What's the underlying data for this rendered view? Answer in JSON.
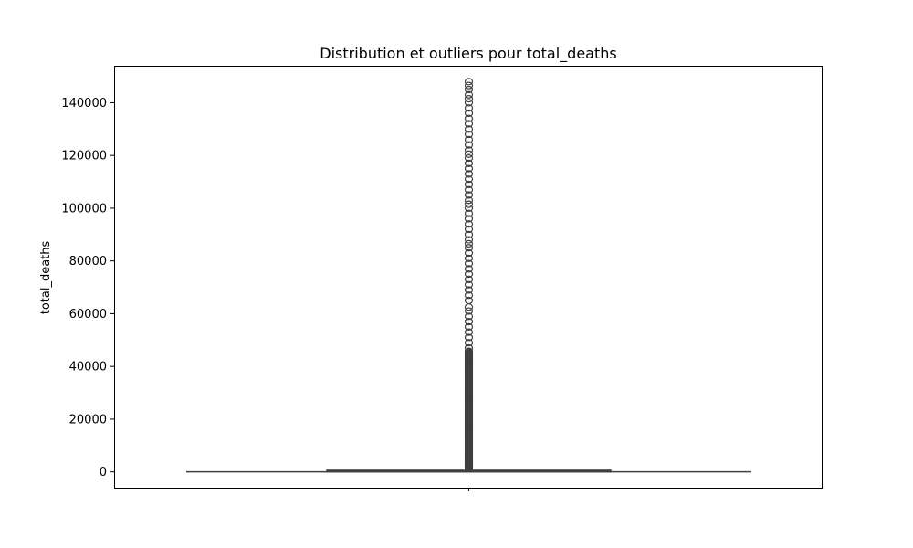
{
  "chart_data": {
    "type": "box",
    "title": "Distribution et outliers pour total_deaths",
    "xlabel": "",
    "ylabel": "total_deaths",
    "ylim": [
      -6000,
      154000
    ],
    "yticks": [
      0,
      20000,
      40000,
      60000,
      80000,
      100000,
      120000,
      140000
    ],
    "grid": false,
    "box": {
      "whisker_low": 0,
      "q1": 20,
      "median": 120,
      "q3": 600,
      "whisker_high": 1500
    },
    "outliers_dense_range": [
      1500,
      46000
    ],
    "outliers_sparse": [
      47000,
      49000,
      51000,
      53000,
      55000,
      57000,
      59000,
      61000,
      62500,
      65000,
      67000,
      69000,
      71000,
      73000,
      75000,
      77000,
      79000,
      81000,
      83000,
      85000,
      86500,
      88000,
      90000,
      92000,
      94000,
      96000,
      98000,
      100000,
      101500,
      103000,
      105000,
      107000,
      109000,
      111000,
      113000,
      115000,
      117000,
      119000,
      120500,
      122000,
      124000,
      126000,
      128000,
      130000,
      132000,
      134000,
      136000,
      138000,
      140000,
      141500,
      143000,
      145000,
      146500,
      148000
    ]
  }
}
